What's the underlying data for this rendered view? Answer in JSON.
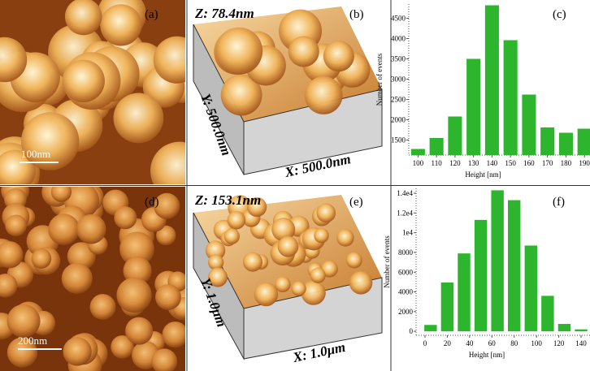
{
  "panels": [
    {
      "label": "(a)",
      "scale_bar": "100nm"
    },
    {
      "label": "(b)",
      "z": "Z: 78.4nm",
      "y": "Y: 500.0nm",
      "x": "X: 500.0nm"
    },
    {
      "label": "(c)"
    },
    {
      "label": "(d)",
      "scale_bar": "200nm"
    },
    {
      "label": "(e)",
      "z": "Z: 153.1nm",
      "y": "Y: 1.0μm",
      "x": "X: 1.0μm"
    },
    {
      "label": "(f)"
    }
  ],
  "chart_data": [
    {
      "type": "bar",
      "x_label": "Height [nm]",
      "y_label": "Number of events",
      "color": "#2db62d",
      "x": [
        100,
        110,
        120,
        130,
        140,
        150,
        160,
        170,
        180,
        190
      ],
      "values": [
        1280,
        1550,
        2080,
        3500,
        4820,
        3960,
        2620,
        1810,
        1680,
        1780
      ],
      "xlim": [
        95,
        193
      ],
      "xticks": [
        100,
        110,
        120,
        130,
        140,
        150,
        160,
        170,
        180,
        190
      ],
      "ylim": [
        1130,
        4850
      ],
      "yticks": [
        1500,
        2000,
        2500,
        3000,
        3500,
        4000,
        4500
      ]
    },
    {
      "type": "bar",
      "x_label": "Height [nm]",
      "y_label": "Number of events",
      "color": "#2db62d",
      "x": [
        5,
        20,
        35,
        50,
        65,
        80,
        95,
        110,
        125,
        140
      ],
      "values": [
        650,
        4950,
        7900,
        11300,
        14300,
        13300,
        8700,
        3600,
        750,
        200
      ],
      "xlim": [
        -8,
        148
      ],
      "xticks": [
        0,
        20,
        40,
        60,
        80,
        100,
        120,
        140
      ],
      "ylim": [
        -400,
        14500
      ],
      "yticks": [
        0,
        2000,
        4000,
        6000,
        8000,
        {
          "value": 10000,
          "label": "1e4"
        },
        {
          "value": 12000,
          "label": "1.2e4"
        },
        {
          "value": 14000,
          "label": "1.4e4"
        }
      ]
    }
  ]
}
